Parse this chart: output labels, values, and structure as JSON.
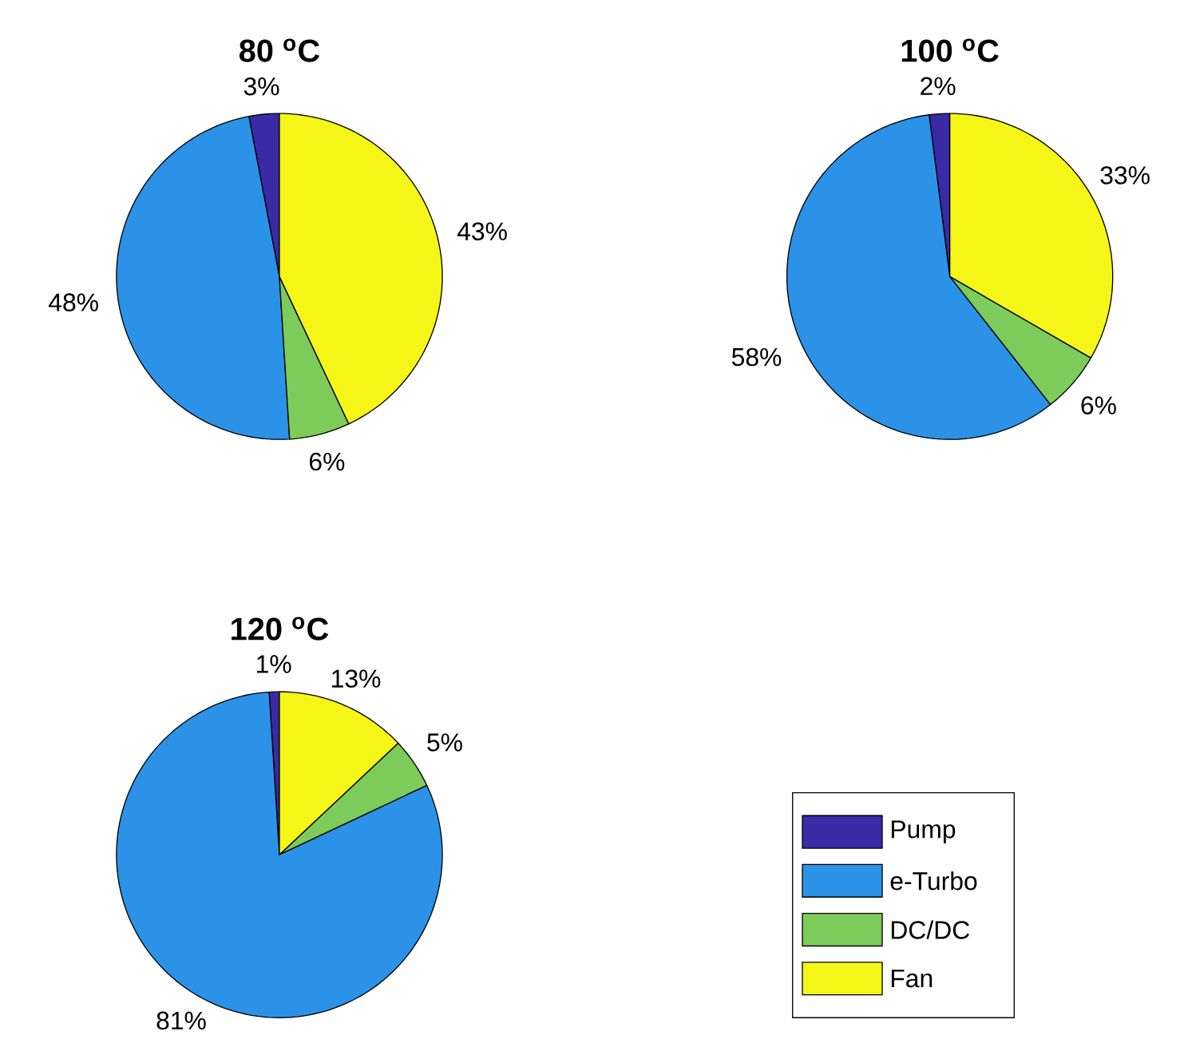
{
  "chart_data": [
    {
      "type": "pie",
      "title": "80 $^{o}$C",
      "categories": [
        null,
        null,
        null,
        null
      ],
      "values": [
        3,
        48,
        6,
        43
      ],
      "colors": [
        "#3a2aa6",
        "#2b92e8",
        "#7dcb5a",
        "#f5f518"
      ],
      "value_labels": [
        "3%",
        "48%",
        "6%",
        "43%"
      ]
    },
    {
      "type": "pie",
      "title": "100 $^{o}$C",
      "categories": [
        null,
        null,
        null,
        null
      ],
      "values": [
        2,
        58,
        6,
        33
      ],
      "colors": [
        "#3a2aa6",
        "#2b92e8",
        "#7dcb5a",
        "#f5f518"
      ],
      "value_labels": [
        "2%",
        "58%",
        "6%",
        "33%"
      ]
    },
    {
      "type": "pie",
      "title": "120 $^{o}$C",
      "categories": [
        "Pump",
        "e-Turbo",
        "DC/DC",
        "Fan"
      ],
      "values": [
        1,
        81,
        5,
        13
      ],
      "colors": [
        "#3a2aa6",
        "#2b92e8",
        "#7dcb5a",
        "#f5f518"
      ],
      "value_labels": [
        "1%",
        "81%",
        "5%",
        "13%"
      ],
      "legend": "bottom right"
    }
  ]
}
